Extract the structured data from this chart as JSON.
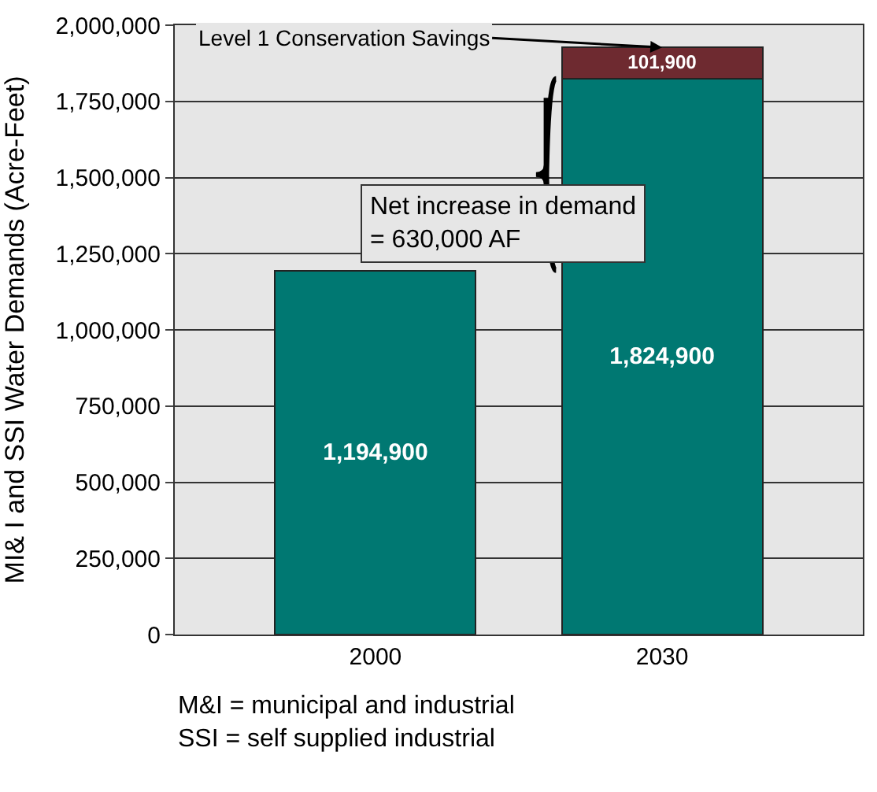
{
  "chart_data": {
    "type": "bar",
    "stacked": true,
    "ylabel": "MI& I and SSI Water Demands (Acre-Feet)",
    "categories": [
      "2000",
      "2030"
    ],
    "series": [
      {
        "color": "#007872",
        "values": [
          1194900,
          1824900
        ],
        "value_labels": [
          "1,194,900",
          "1,824,900"
        ]
      },
      {
        "color": "#6e2a30",
        "values": [
          null,
          101900
        ],
        "value_labels": [
          null,
          "101,900"
        ]
      }
    ],
    "ylim": [
      0,
      2000000
    ],
    "yticks": [
      0,
      {
        "value": 250000,
        "label": "250,000"
      },
      {
        "value": 500000,
        "label": "500,000"
      },
      {
        "value": 750000,
        "label": "750,000"
      },
      {
        "value": 1000000,
        "label": "1,000,000"
      },
      {
        "value": 1250000,
        "label": "1,250,000"
      },
      {
        "value": 1500000,
        "label": "1,500,000"
      },
      {
        "value": 1750000,
        "label": "1,750,000"
      },
      {
        "value": 2000000,
        "label": "2,000,000"
      }
    ],
    "grid": "y",
    "annotations": [
      {
        "text": "Level 1 Conservation Savings",
        "x": "2030",
        "y": 1926800
      },
      "Net increase in demand\n= 630,000 AF",
      "M&I = municipal and industrial\nSSI = self supplied industrial"
    ]
  }
}
